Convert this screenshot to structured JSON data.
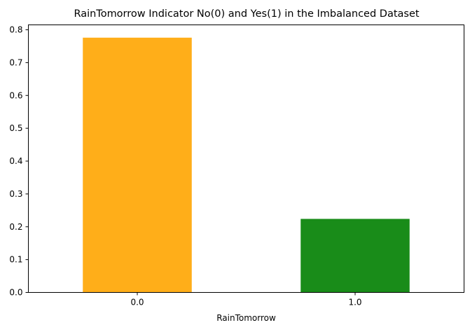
{
  "chart_data": {
    "type": "bar",
    "title": "RainTomorrow Indicator No(0) and Yes(1) in the Imbalanced Dataset",
    "xlabel": "RainTomorrow",
    "ylabel": "",
    "categories": [
      "0.0",
      "1.0"
    ],
    "values": [
      0.776,
      0.224
    ],
    "colors": [
      "#ffa500",
      "#008000"
    ],
    "bar_opacity": 0.9,
    "ylim": [
      0,
      0.815
    ],
    "yticks": [
      0.0,
      0.1,
      0.2,
      0.3,
      0.4,
      0.5,
      0.6,
      0.7,
      0.8
    ],
    "ytick_labels": [
      "0.0",
      "0.1",
      "0.2",
      "0.3",
      "0.4",
      "0.5",
      "0.6",
      "0.7",
      "0.8"
    ],
    "grid": false,
    "legend": "none"
  }
}
